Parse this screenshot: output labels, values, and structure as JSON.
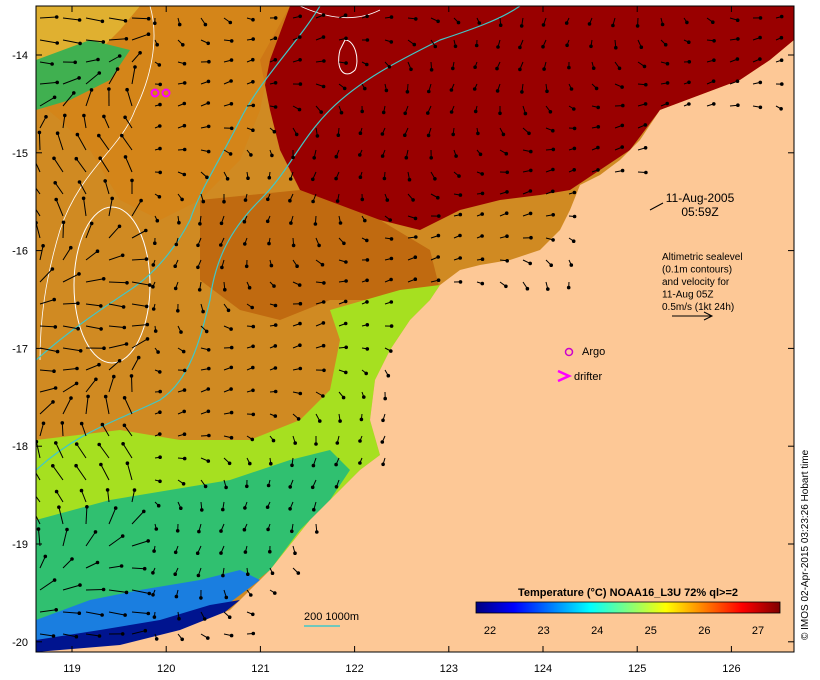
{
  "map": {
    "x_ticks": [
      "119",
      "120",
      "121",
      "122",
      "123",
      "124",
      "125",
      "126"
    ],
    "y_ticks": [
      "-14",
      "-15",
      "-16",
      "-17",
      "-18",
      "-19",
      "-20"
    ],
    "land_color": "#fdc896",
    "date_line1": "11-Aug-2005",
    "date_line2": "05:59Z",
    "info_lines": [
      "Altimetric sealevel",
      "(0.1m contours)",
      "and velocity for",
      "11-Aug 05Z",
      "0.5m/s (1kt 24h)"
    ],
    "argo_label": "Argo",
    "drifter_label": "drifter",
    "bathymetry_label": "200  1000m",
    "colorbar": {
      "title": "Temperature (°C) NOAA16_L3U 72% ql>=2",
      "ticks": [
        "22",
        "23",
        "24",
        "25",
        "26",
        "27"
      ],
      "colors": [
        "#00007f",
        "#0000ff",
        "#007fff",
        "#00ffff",
        "#7fff7f",
        "#ffff00",
        "#ff7f00",
        "#ff0000",
        "#7f0000"
      ]
    },
    "credit": "© IMOS 02-Apr-2015 03:23:26 Hobart time"
  }
}
